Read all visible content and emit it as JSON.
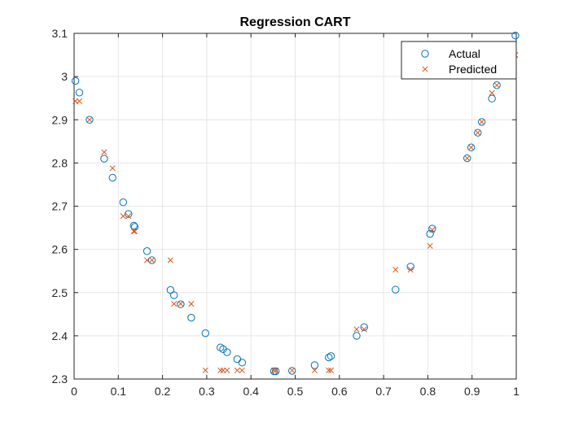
{
  "chart_data": {
    "type": "scatter",
    "title": "Regression CART",
    "xlabel": "",
    "ylabel": "",
    "xlim": [
      0,
      1
    ],
    "ylim": [
      2.3,
      3.1
    ],
    "xticks": [
      "0",
      "0.1",
      "0.2",
      "0.3",
      "0.4",
      "0.5",
      "0.6",
      "0.7",
      "0.8",
      "0.9",
      "1"
    ],
    "yticks": [
      "2.3",
      "2.4",
      "2.5",
      "2.6",
      "2.7",
      "2.8",
      "2.9",
      "3",
      "3.1"
    ],
    "grid": true,
    "legend_position": "top-right",
    "series": [
      {
        "name": "Actual",
        "marker": "circle",
        "color": "#0072BD",
        "points": [
          [
            0.003,
            2.99
          ],
          [
            0.012,
            2.963
          ],
          [
            0.035,
            2.9
          ],
          [
            0.068,
            2.81
          ],
          [
            0.087,
            2.766
          ],
          [
            0.111,
            2.709
          ],
          [
            0.123,
            2.682
          ],
          [
            0.135,
            2.655
          ],
          [
            0.137,
            2.652
          ],
          [
            0.165,
            2.596
          ],
          [
            0.176,
            2.575
          ],
          [
            0.218,
            2.506
          ],
          [
            0.226,
            2.494
          ],
          [
            0.241,
            2.473
          ],
          [
            0.265,
            2.442
          ],
          [
            0.297,
            2.406
          ],
          [
            0.331,
            2.373
          ],
          [
            0.337,
            2.369
          ],
          [
            0.346,
            2.362
          ],
          [
            0.369,
            2.346
          ],
          [
            0.38,
            2.338
          ],
          [
            0.452,
            2.318
          ],
          [
            0.456,
            2.318
          ],
          [
            0.493,
            2.319
          ],
          [
            0.544,
            2.332
          ],
          [
            0.576,
            2.35
          ],
          [
            0.581,
            2.353
          ],
          [
            0.639,
            2.4
          ],
          [
            0.656,
            2.42
          ],
          [
            0.727,
            2.507
          ],
          [
            0.761,
            2.56
          ],
          [
            0.805,
            2.636
          ],
          [
            0.81,
            2.648
          ],
          [
            0.889,
            2.811
          ],
          [
            0.898,
            2.836
          ],
          [
            0.913,
            2.87
          ],
          [
            0.922,
            2.895
          ],
          [
            0.945,
            2.949
          ],
          [
            0.956,
            2.98
          ],
          [
            0.982,
            3.05
          ],
          [
            0.998,
            3.095
          ]
        ]
      },
      {
        "name": "Predicted",
        "marker": "x",
        "color": "#D95319",
        "points": [
          [
            0.003,
            2.943
          ],
          [
            0.012,
            2.943
          ],
          [
            0.035,
            2.9
          ],
          [
            0.068,
            2.825
          ],
          [
            0.087,
            2.788
          ],
          [
            0.111,
            2.677
          ],
          [
            0.123,
            2.677
          ],
          [
            0.135,
            2.642
          ],
          [
            0.137,
            2.642
          ],
          [
            0.165,
            2.575
          ],
          [
            0.176,
            2.575
          ],
          [
            0.218,
            2.575
          ],
          [
            0.226,
            2.474
          ],
          [
            0.241,
            2.474
          ],
          [
            0.265,
            2.474
          ],
          [
            0.297,
            2.32
          ],
          [
            0.331,
            2.32
          ],
          [
            0.337,
            2.32
          ],
          [
            0.346,
            2.32
          ],
          [
            0.369,
            2.32
          ],
          [
            0.38,
            2.32
          ],
          [
            0.452,
            2.32
          ],
          [
            0.456,
            2.32
          ],
          [
            0.493,
            2.32
          ],
          [
            0.544,
            2.32
          ],
          [
            0.576,
            2.32
          ],
          [
            0.581,
            2.32
          ],
          [
            0.639,
            2.415
          ],
          [
            0.656,
            2.415
          ],
          [
            0.727,
            2.553
          ],
          [
            0.761,
            2.553
          ],
          [
            0.805,
            2.608
          ],
          [
            0.81,
            2.645
          ],
          [
            0.889,
            2.811
          ],
          [
            0.898,
            2.836
          ],
          [
            0.913,
            2.87
          ],
          [
            0.922,
            2.895
          ],
          [
            0.945,
            2.962
          ],
          [
            0.956,
            2.98
          ],
          [
            0.982,
            3.05
          ],
          [
            0.998,
            3.05
          ]
        ]
      }
    ]
  }
}
